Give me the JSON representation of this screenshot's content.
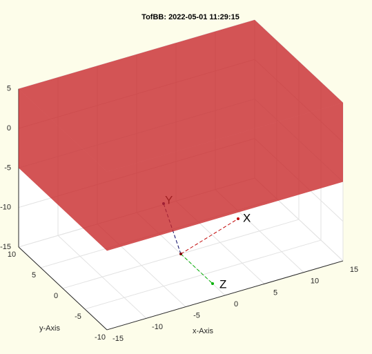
{
  "chart_data": {
    "type": "3d-box",
    "title": "TofBB: 2022-05-01 11:29:15",
    "xlabel": "x-Axis",
    "ylabel": "y-Axis",
    "xlim": [
      -15,
      15
    ],
    "ylim": [
      -10,
      10
    ],
    "zlim": [
      -15,
      5
    ],
    "xticks": [
      -15,
      -10,
      -5,
      0,
      5,
      10,
      15
    ],
    "yticks": [
      -10,
      -5,
      0,
      5,
      10
    ],
    "zticks": [
      -15,
      -10,
      -5,
      0,
      5
    ],
    "grid": true,
    "box": {
      "x": [
        -15,
        15
      ],
      "y": [
        -10,
        10
      ],
      "z": [
        -5,
        5
      ],
      "color": "#c8282a",
      "opacity": 0.55
    },
    "triad": [
      "X",
      "Y",
      "Z"
    ]
  }
}
